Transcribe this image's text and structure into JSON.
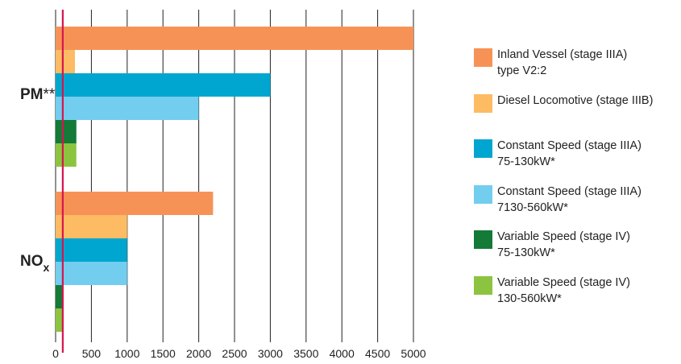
{
  "chart_data": {
    "type": "bar",
    "orientation": "horizontal",
    "groups": [
      {
        "label": "PM**",
        "label_main": "PM",
        "label_suffix": "**",
        "values": [
          5000,
          270,
          3000,
          2000,
          290,
          290
        ]
      },
      {
        "label": "NOx",
        "label_main": "NO",
        "label_suffix": "x",
        "values": [
          2200,
          1000,
          1000,
          1000,
          100,
          100
        ]
      }
    ],
    "series": [
      {
        "name": "Inland Vessel (stage IIIA) type V2:2",
        "lines": [
          "Inland Vessel (stage IIIA)",
          "type V2:2"
        ],
        "color": "#f79256"
      },
      {
        "name": "Diesel Locomotive (stage IIIB)",
        "lines": [
          "Diesel Locomotive (stage IIIB)"
        ],
        "color": "#fdbb63"
      },
      {
        "name": "Constant Speed (stage IIIA) 75-130kW*",
        "lines": [
          "Constant Speed (stage IIIA)",
          "75-130kW*"
        ],
        "color": "#00a6cf"
      },
      {
        "name": "Constant Speed (stage IIIA) 7130-560kW*",
        "lines": [
          "Constant Speed (stage IIIA)",
          "7130-560kW*"
        ],
        "color": "#73cdef"
      },
      {
        "name": "Variable Speed (stage IV) 75-130kW*",
        "lines": [
          "Variable Speed (stage IV)",
          "75-130kW*"
        ],
        "color": "#137a38"
      },
      {
        "name": "Variable Speed (stage IV) 130-560kW*",
        "lines": [
          "Variable Speed (stage IV)",
          "130-560kW*"
        ],
        "color": "#8cc43f"
      }
    ],
    "x_ticks": [
      0,
      500,
      1000,
      1500,
      2000,
      2500,
      3000,
      3500,
      4000,
      4500,
      5000
    ],
    "x_tick_labels": [
      "0",
      "500",
      "1000",
      "1500",
      "2000",
      "2500",
      "3000",
      "3500",
      "4000",
      "4500",
      "5000"
    ],
    "xlim": [
      0,
      5000
    ],
    "reference_line": {
      "value": 100,
      "color": "#d6164f"
    },
    "grid": "vertical",
    "legend_position": "right"
  }
}
